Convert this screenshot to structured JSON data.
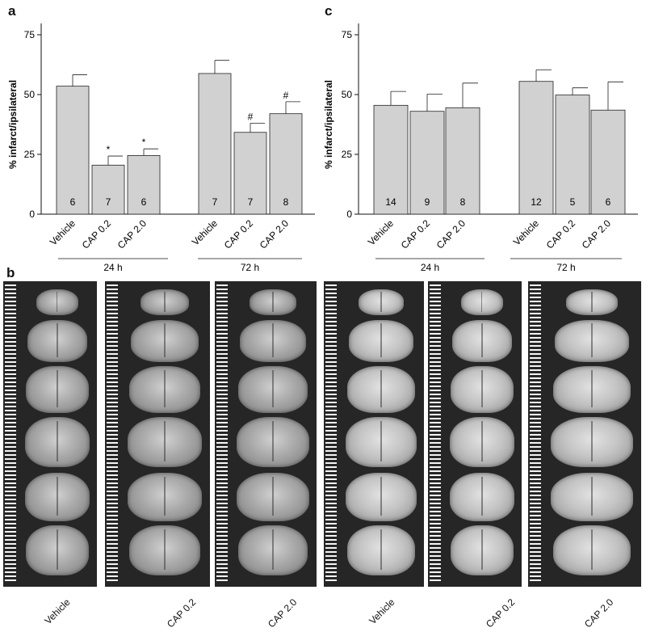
{
  "panels": {
    "a": {
      "letter": "a"
    },
    "b": {
      "letter": "b"
    },
    "c": {
      "letter": "c"
    }
  },
  "chart_data": [
    {
      "panel": "a",
      "type": "bar",
      "ylabel": "% infarct/ipsilateral",
      "ylim": [
        0,
        80
      ],
      "yticks": [
        0,
        25,
        50,
        75
      ],
      "categories": [
        "Vehicle",
        "CAP 0.2",
        "CAP 2.0",
        "Vehicle",
        "CAP 0.2",
        "CAP 2.0"
      ],
      "groups": [
        {
          "label": "24 h",
          "indices": [
            0,
            1,
            2
          ]
        },
        {
          "label": "72 h",
          "indices": [
            3,
            4,
            5
          ]
        }
      ],
      "values": [
        53.5,
        20.5,
        24.5,
        58.8,
        34.2,
        42.0
      ],
      "errors": [
        4.8,
        3.8,
        2.8,
        5.5,
        3.8,
        5.0
      ],
      "n": [
        "6",
        "7",
        "6",
        "7",
        "7",
        "8"
      ],
      "markers": [
        "",
        "*",
        "*",
        "",
        "#",
        "#"
      ],
      "bar_color": "#d1d1d1"
    },
    {
      "panel": "c",
      "type": "bar",
      "ylabel": "% infarct/ipsilateral",
      "ylim": [
        0,
        80
      ],
      "yticks": [
        0,
        25,
        50,
        75
      ],
      "categories": [
        "Vehicle",
        "CAP 0.2",
        "CAP 2.0",
        "Vehicle",
        "CAP 0.2",
        "CAP 2.0"
      ],
      "groups": [
        {
          "label": "24 h",
          "indices": [
            0,
            1,
            2
          ]
        },
        {
          "label": "72 h",
          "indices": [
            3,
            4,
            5
          ]
        }
      ],
      "values": [
        45.5,
        43.0,
        44.5,
        55.5,
        49.8,
        43.5
      ],
      "errors": [
        5.8,
        7.2,
        10.3,
        4.8,
        3.0,
        11.8
      ],
      "n": [
        "14",
        "9",
        "8",
        "12",
        "5",
        "6"
      ],
      "markers": [
        "",
        "",
        "",
        "",
        "",
        ""
      ],
      "bar_color": "#d1d1d1"
    }
  ],
  "photo_labels": [
    "Vehicle",
    "CAP 0.2",
    "CAP 2.0",
    "Vehicle",
    "CAP 0.2",
    "CAP 2.0"
  ]
}
